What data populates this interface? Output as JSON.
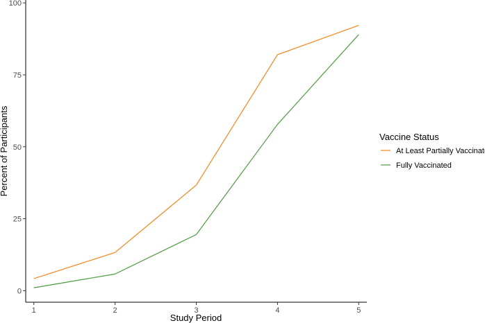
{
  "chart_data": {
    "type": "line",
    "title": "",
    "xlabel": "Study Period",
    "ylabel": "Percent of Participants",
    "x": [
      1,
      2,
      3,
      4,
      5
    ],
    "xlim": [
      0.9,
      5.1
    ],
    "ylim": [
      -4,
      101
    ],
    "x_ticks": [
      1,
      2,
      3,
      4,
      5
    ],
    "y_ticks": [
      0,
      25,
      50,
      75,
      100
    ],
    "grid": false,
    "legend": {
      "title": "Vaccine Status",
      "placement": "right"
    },
    "series": [
      {
        "name": "At Least Partially Vaccinated",
        "color": "#F28E2B",
        "values": [
          4.2,
          13.3,
          36.7,
          82.0,
          92.2
        ]
      },
      {
        "name": "Fully Vaccinated",
        "color": "#59A14F",
        "values": [
          1.0,
          5.8,
          19.5,
          57.8,
          89.0
        ]
      }
    ]
  }
}
